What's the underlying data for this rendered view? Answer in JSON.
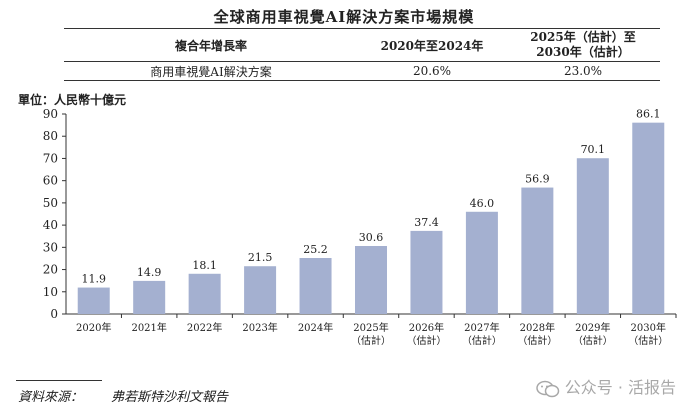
{
  "title": "全球商用車視覺AI解決方案市場規模",
  "cagr_table": {
    "col1_header": "複合年增長率",
    "col2_header": "2020年至2024年",
    "col3_header_line1": "2025年（估計）至",
    "col3_header_line2": "2030年（估計）",
    "row_label": "商用車視覺AI解決方案",
    "row_value1": "20.6%",
    "row_value2": "23.0%"
  },
  "unit_label": "單位：人民幣十億元",
  "chart_data": {
    "type": "bar",
    "title": "全球商用車視覺AI解決方案市場規模",
    "categories": [
      "2020年",
      "2021年",
      "2022年",
      "2023年",
      "2024年",
      "2025年",
      "2026年",
      "2027年",
      "2028年",
      "2029年",
      "2030年"
    ],
    "category_notes": [
      "",
      "",
      "",
      "",
      "",
      "（估計）",
      "（估計）",
      "（估計）",
      "（估計）",
      "（估計）",
      "（估計）"
    ],
    "values": [
      11.9,
      14.9,
      18.1,
      21.5,
      25.2,
      30.6,
      37.4,
      46.0,
      56.9,
      70.1,
      86.1
    ],
    "data_labels": [
      "11.9",
      "14.9",
      "18.1",
      "21.5",
      "25.2",
      "30.6",
      "37.4",
      "46.0",
      "56.9",
      "70.1",
      "86.1"
    ],
    "yticks": [
      "0",
      "10",
      "20",
      "30",
      "40",
      "50",
      "60",
      "70",
      "80",
      "90"
    ],
    "ylim": [
      0,
      90
    ],
    "xlabel": "",
    "ylabel": "單位：人民幣十億元",
    "bar_color": "#a4b0d0",
    "grid": false
  },
  "source": {
    "label": "資料來源：",
    "value": "弗若斯特沙利文報告"
  },
  "watermark": "公众号 · 活报告",
  "watermark_icon": "wechat-icon"
}
